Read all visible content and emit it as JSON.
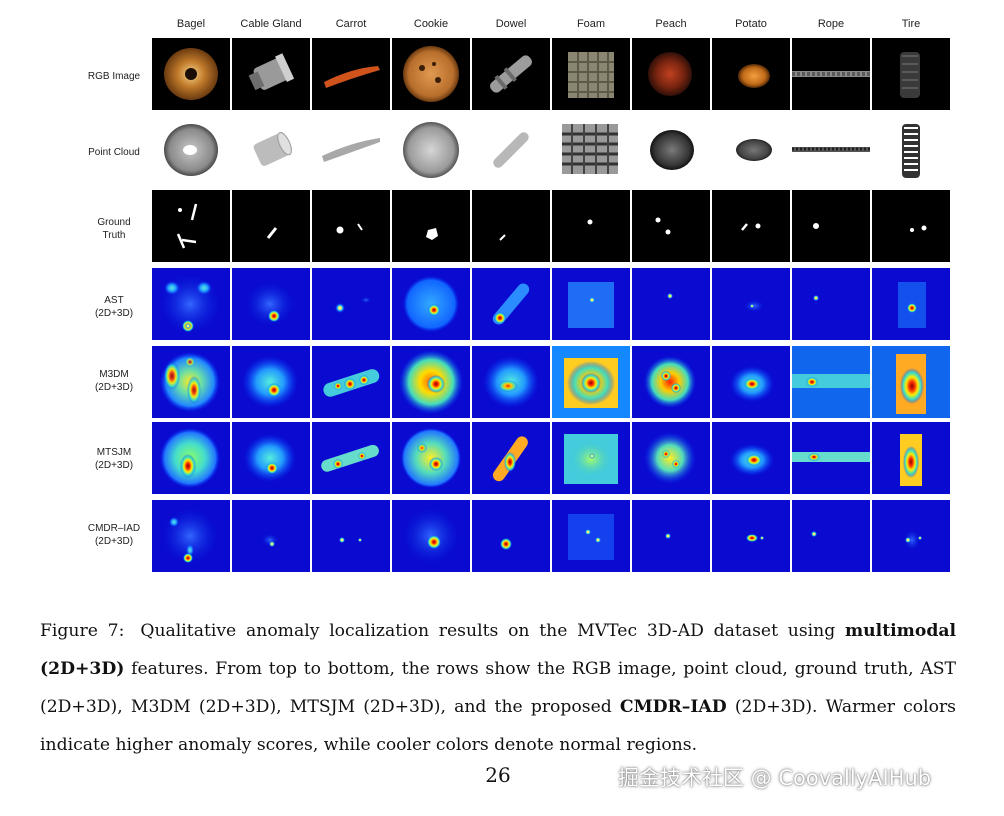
{
  "figure": {
    "columns": [
      "Bagel",
      "Cable Gland",
      "Carrot",
      "Cookie",
      "Dowel",
      "Foam",
      "Peach",
      "Potato",
      "Rope",
      "Tire"
    ],
    "rows": [
      "RGB Image",
      "Point Cloud",
      "Ground\nTruth",
      "AST\n(2D+3D)",
      "M3DM\n(2D+3D)",
      "MTSJM\n(2D+3D)",
      "CMDR–IAD\n(2D+3D)"
    ]
  },
  "caption": {
    "label": "Figure 7:",
    "part1": "Qualitative anomaly localization results on the MVTec 3D-AD dataset using ",
    "bold1": "multimodal (2D+3D)",
    "part2": " features. From top to bottom, the rows show the RGB image, point cloud, ground truth, AST (2D+3D), M3DM (2D+3D), MTSJM (2D+3D), and the proposed ",
    "bold2": "CMDR–IAD",
    "part3": " (2D+3D). Warmer colors indicate higher anomaly scores, while cooler colors denote normal regions."
  },
  "page_number": "26",
  "watermark": "掘金技术社区 @ CoovallyAIHub"
}
